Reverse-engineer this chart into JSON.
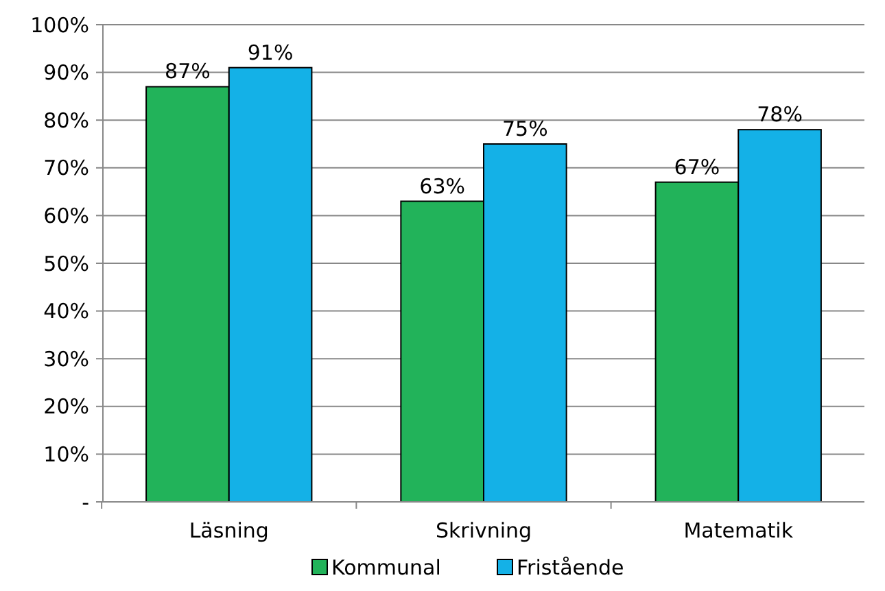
{
  "chart_data": {
    "type": "bar",
    "categories": [
      "Läsning",
      "Skrivning",
      "Matematik"
    ],
    "series": [
      {
        "name": "Kommunal",
        "color": "#22b35a",
        "values": [
          87,
          63,
          67
        ],
        "value_labels": [
          "87%",
          "63%",
          "67%"
        ]
      },
      {
        "name": "Fristående",
        "color": "#14b1e7",
        "values": [
          91,
          75,
          78
        ],
        "value_labels": [
          "91%",
          "75%",
          "78%"
        ]
      }
    ],
    "ylim": [
      0,
      100
    ],
    "yticks": [
      {
        "value": 0,
        "label": "-"
      },
      {
        "value": 10,
        "label": "10%"
      },
      {
        "value": 20,
        "label": "20%"
      },
      {
        "value": 30,
        "label": "30%"
      },
      {
        "value": 40,
        "label": "40%"
      },
      {
        "value": 50,
        "label": "50%"
      },
      {
        "value": 60,
        "label": "60%"
      },
      {
        "value": 70,
        "label": "70%"
      },
      {
        "value": 80,
        "label": "80%"
      },
      {
        "value": 90,
        "label": "90%"
      },
      {
        "value": 100,
        "label": "100%"
      }
    ],
    "grid": "y",
    "legend": "bottom"
  }
}
